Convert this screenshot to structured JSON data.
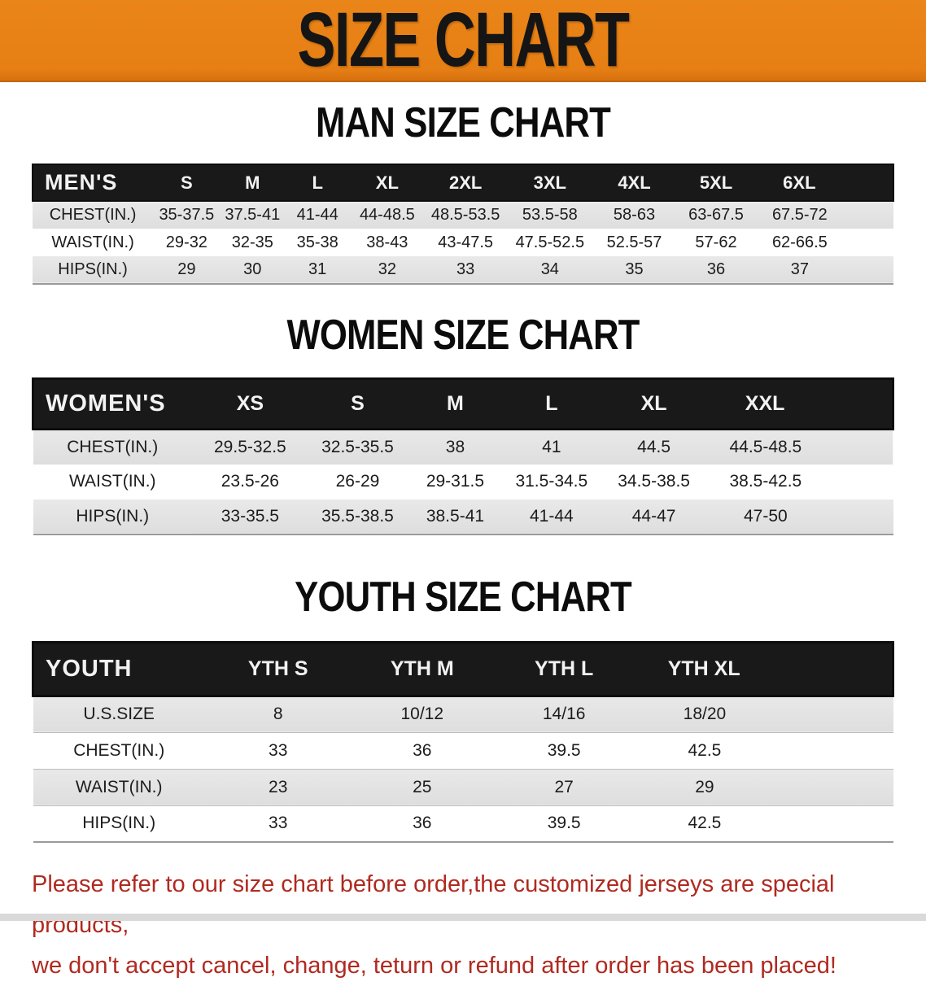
{
  "banner": {
    "title": "SIZE CHART"
  },
  "colors": {
    "banner_bg": "#e8811b",
    "header_band_bg": "#191919",
    "header_band_text": "#ffffff",
    "alt_row_bg": "#e1e1e1",
    "note_text": "#b02a20"
  },
  "sections": [
    {
      "id": "men",
      "title": "MAN SIZE CHART",
      "corner_label": "MEN'S",
      "sizes": [
        "S",
        "M",
        "L",
        "XL",
        "2XL",
        "3XL",
        "4XL",
        "5XL",
        "6XL"
      ],
      "rows": [
        {
          "label": "CHEST(IN.)",
          "values": [
            "35-37.5",
            "37.5-41",
            "41-44",
            "44-48.5",
            "48.5-53.5",
            "53.5-58",
            "58-63",
            "63-67.5",
            "67.5-72"
          ]
        },
        {
          "label": "WAIST(IN.)",
          "values": [
            "29-32",
            "32-35",
            "35-38",
            "38-43",
            "43-47.5",
            "47.5-52.5",
            "52.5-57",
            "57-62",
            "62-66.5"
          ]
        },
        {
          "label": "HIPS(IN.)",
          "values": [
            "29",
            "30",
            "31",
            "32",
            "33",
            "34",
            "35",
            "36",
            "37"
          ]
        }
      ]
    },
    {
      "id": "women",
      "title": "WOMEN SIZE CHART",
      "corner_label": "WOMEN'S",
      "sizes": [
        "XS",
        "S",
        "M",
        "L",
        "XL",
        "XXL"
      ],
      "rows": [
        {
          "label": "CHEST(IN.)",
          "values": [
            "29.5-32.5",
            "32.5-35.5",
            "38",
            "41",
            "44.5",
            "44.5-48.5"
          ]
        },
        {
          "label": "WAIST(IN.)",
          "values": [
            "23.5-26",
            "26-29",
            "29-31.5",
            "31.5-34.5",
            "34.5-38.5",
            "38.5-42.5"
          ]
        },
        {
          "label": "HIPS(IN.)",
          "values": [
            "33-35.5",
            "35.5-38.5",
            "38.5-41",
            "41-44",
            "44-47",
            "47-50"
          ]
        }
      ]
    },
    {
      "id": "youth",
      "title": "YOUTH SIZE CHART",
      "corner_label": "YOUTH",
      "sizes": [
        "YTH S",
        "YTH M",
        "YTH L",
        "YTH XL"
      ],
      "rows": [
        {
          "label": "U.S.SIZE",
          "values": [
            "8",
            "10/12",
            "14/16",
            "18/20"
          ]
        },
        {
          "label": "CHEST(IN.)",
          "values": [
            "33",
            "36",
            "39.5",
            "42.5"
          ]
        },
        {
          "label": "WAIST(IN.)",
          "values": [
            "23",
            "25",
            "27",
            "29"
          ]
        },
        {
          "label": "HIPS(IN.)",
          "values": [
            "33",
            "36",
            "39.5",
            "42.5"
          ]
        }
      ]
    }
  ],
  "note": {
    "line1": "Please refer to our size chart before order,the customized jerseys are special products,",
    "line2": "we don't accept cancel, change, teturn or refund after order has been placed!"
  }
}
